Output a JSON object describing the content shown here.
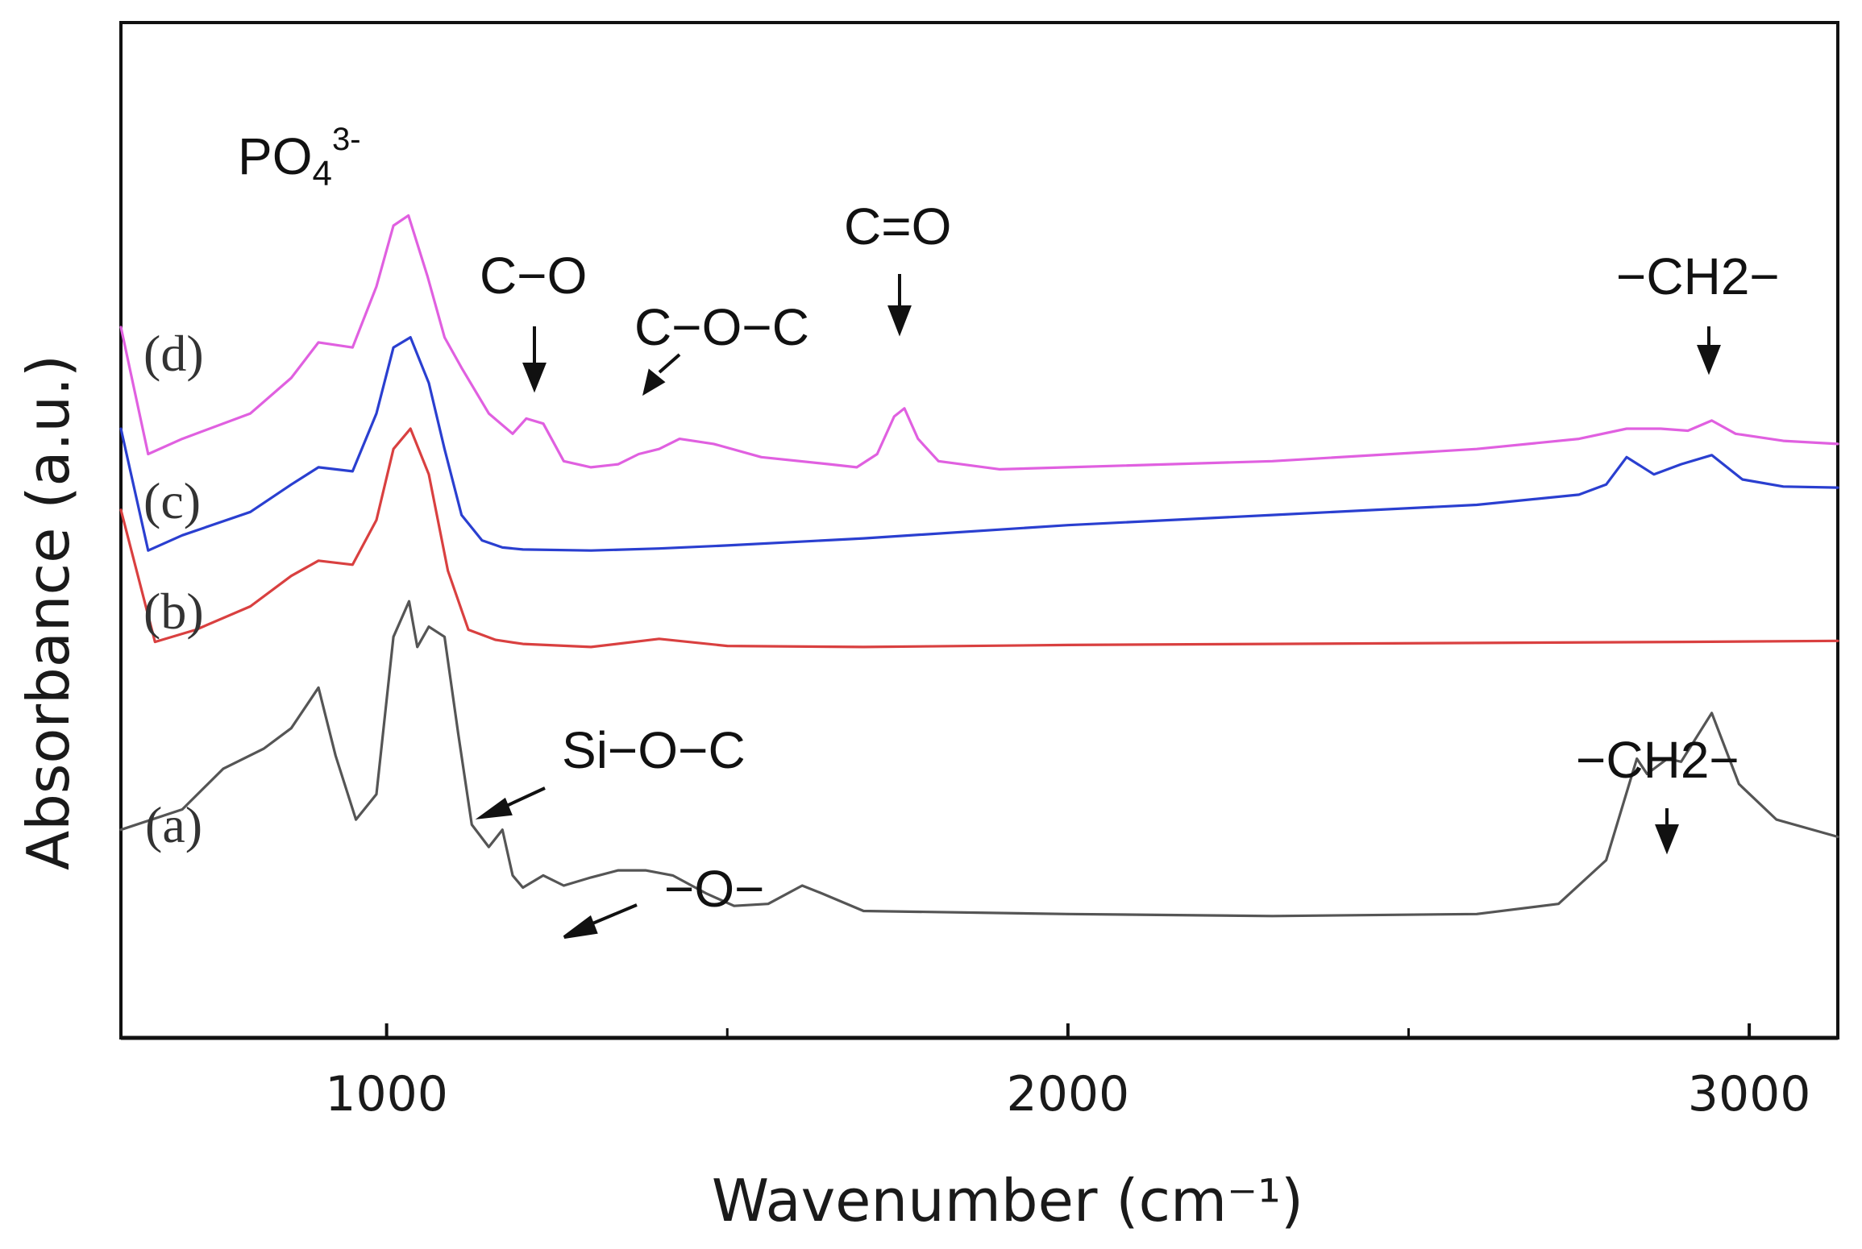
{
  "chart_data": {
    "type": "line",
    "xlabel": "Wavenumber (cm⁻¹)",
    "ylabel": "Absorbance (a.u.)",
    "xlim": [
      610,
      3130
    ],
    "x_ticks": [
      1000,
      2000,
      3000
    ],
    "x_tick_labels": [
      "1000",
      "2000",
      "3000"
    ],
    "y_ticks": [],
    "colors": {
      "a": "#555555",
      "b": "#d94040",
      "c": "#2a3fd0",
      "d": "#e060e0",
      "axis": "#111111"
    },
    "series": [
      {
        "name": "(a)",
        "key": "a",
        "points": [
          [
            610,
            0.205
          ],
          [
            700,
            0.225
          ],
          [
            760,
            0.265
          ],
          [
            820,
            0.285
          ],
          [
            860,
            0.305
          ],
          [
            900,
            0.345
          ],
          [
            925,
            0.278
          ],
          [
            955,
            0.215
          ],
          [
            985,
            0.24
          ],
          [
            1010,
            0.395
          ],
          [
            1033,
            0.43
          ],
          [
            1045,
            0.385
          ],
          [
            1062,
            0.405
          ],
          [
            1085,
            0.395
          ],
          [
            1105,
            0.3
          ],
          [
            1125,
            0.21
          ],
          [
            1150,
            0.188
          ],
          [
            1170,
            0.205
          ],
          [
            1185,
            0.16
          ],
          [
            1200,
            0.148
          ],
          [
            1230,
            0.16
          ],
          [
            1260,
            0.15
          ],
          [
            1300,
            0.158
          ],
          [
            1340,
            0.165
          ],
          [
            1380,
            0.165
          ],
          [
            1420,
            0.16
          ],
          [
            1470,
            0.142
          ],
          [
            1510,
            0.13
          ],
          [
            1560,
            0.132
          ],
          [
            1610,
            0.15
          ],
          [
            1640,
            0.142
          ],
          [
            1700,
            0.125
          ],
          [
            2000,
            0.122
          ],
          [
            2300,
            0.12
          ],
          [
            2600,
            0.122
          ],
          [
            2720,
            0.132
          ],
          [
            2790,
            0.175
          ],
          [
            2835,
            0.275
          ],
          [
            2850,
            0.26
          ],
          [
            2880,
            0.275
          ],
          [
            2900,
            0.272
          ],
          [
            2945,
            0.32
          ],
          [
            2985,
            0.25
          ],
          [
            3040,
            0.215
          ],
          [
            3130,
            0.198
          ]
        ]
      },
      {
        "name": "(b)",
        "key": "b",
        "points": [
          [
            610,
            0.52
          ],
          [
            660,
            0.39
          ],
          [
            720,
            0.402
          ],
          [
            800,
            0.425
          ],
          [
            860,
            0.455
          ],
          [
            900,
            0.47
          ],
          [
            950,
            0.466
          ],
          [
            985,
            0.51
          ],
          [
            1010,
            0.58
          ],
          [
            1035,
            0.6
          ],
          [
            1062,
            0.555
          ],
          [
            1090,
            0.46
          ],
          [
            1120,
            0.402
          ],
          [
            1160,
            0.392
          ],
          [
            1200,
            0.388
          ],
          [
            1300,
            0.385
          ],
          [
            1400,
            0.393
          ],
          [
            1500,
            0.386
          ],
          [
            1700,
            0.385
          ],
          [
            2000,
            0.387
          ],
          [
            2300,
            0.388
          ],
          [
            2600,
            0.389
          ],
          [
            2900,
            0.39
          ],
          [
            3130,
            0.391
          ]
        ]
      },
      {
        "name": "(c)",
        "key": "c",
        "points": [
          [
            610,
            0.6
          ],
          [
            650,
            0.48
          ],
          [
            700,
            0.495
          ],
          [
            800,
            0.518
          ],
          [
            860,
            0.545
          ],
          [
            900,
            0.562
          ],
          [
            950,
            0.558
          ],
          [
            985,
            0.615
          ],
          [
            1010,
            0.68
          ],
          [
            1035,
            0.69
          ],
          [
            1062,
            0.645
          ],
          [
            1085,
            0.58
          ],
          [
            1110,
            0.515
          ],
          [
            1140,
            0.49
          ],
          [
            1170,
            0.483
          ],
          [
            1200,
            0.481
          ],
          [
            1300,
            0.48
          ],
          [
            1400,
            0.482
          ],
          [
            1500,
            0.485
          ],
          [
            1700,
            0.492
          ],
          [
            2000,
            0.505
          ],
          [
            2300,
            0.515
          ],
          [
            2600,
            0.525
          ],
          [
            2750,
            0.535
          ],
          [
            2790,
            0.545
          ],
          [
            2820,
            0.572
          ],
          [
            2860,
            0.555
          ],
          [
            2900,
            0.565
          ],
          [
            2945,
            0.574
          ],
          [
            2990,
            0.55
          ],
          [
            3050,
            0.543
          ],
          [
            3130,
            0.542
          ]
        ]
      },
      {
        "name": "(d)",
        "key": "d",
        "points": [
          [
            610,
            0.7
          ],
          [
            650,
            0.575
          ],
          [
            700,
            0.59
          ],
          [
            800,
            0.615
          ],
          [
            860,
            0.65
          ],
          [
            900,
            0.685
          ],
          [
            950,
            0.68
          ],
          [
            985,
            0.74
          ],
          [
            1010,
            0.8
          ],
          [
            1032,
            0.81
          ],
          [
            1060,
            0.75
          ],
          [
            1085,
            0.69
          ],
          [
            1110,
            0.66
          ],
          [
            1150,
            0.615
          ],
          [
            1185,
            0.595
          ],
          [
            1205,
            0.61
          ],
          [
            1230,
            0.605
          ],
          [
            1260,
            0.568
          ],
          [
            1300,
            0.562
          ],
          [
            1340,
            0.565
          ],
          [
            1370,
            0.575
          ],
          [
            1400,
            0.58
          ],
          [
            1430,
            0.59
          ],
          [
            1480,
            0.585
          ],
          [
            1550,
            0.572
          ],
          [
            1650,
            0.565
          ],
          [
            1690,
            0.562
          ],
          [
            1720,
            0.575
          ],
          [
            1745,
            0.612
          ],
          [
            1760,
            0.62
          ],
          [
            1780,
            0.59
          ],
          [
            1810,
            0.568
          ],
          [
            1900,
            0.56
          ],
          [
            2000,
            0.562
          ],
          [
            2300,
            0.568
          ],
          [
            2600,
            0.58
          ],
          [
            2750,
            0.59
          ],
          [
            2820,
            0.6
          ],
          [
            2870,
            0.6
          ],
          [
            2910,
            0.598
          ],
          [
            2945,
            0.608
          ],
          [
            2980,
            0.595
          ],
          [
            3050,
            0.588
          ],
          [
            3130,
            0.585
          ]
        ]
      }
    ],
    "series_labels": [
      "(a)",
      "(b)",
      "(c)",
      "(d)"
    ],
    "annotations": {
      "po4_base": "PO",
      "po4_sub": "4",
      "po4_sup": "3-",
      "c_o": "C−O",
      "c_o_c": "C−O−C",
      "c_eq_o": "C=O",
      "ch2_top": "−CH2−",
      "si_o_c": "Si−O−C",
      "o": "−O−",
      "ch2_bottom": "−CH2−"
    }
  }
}
